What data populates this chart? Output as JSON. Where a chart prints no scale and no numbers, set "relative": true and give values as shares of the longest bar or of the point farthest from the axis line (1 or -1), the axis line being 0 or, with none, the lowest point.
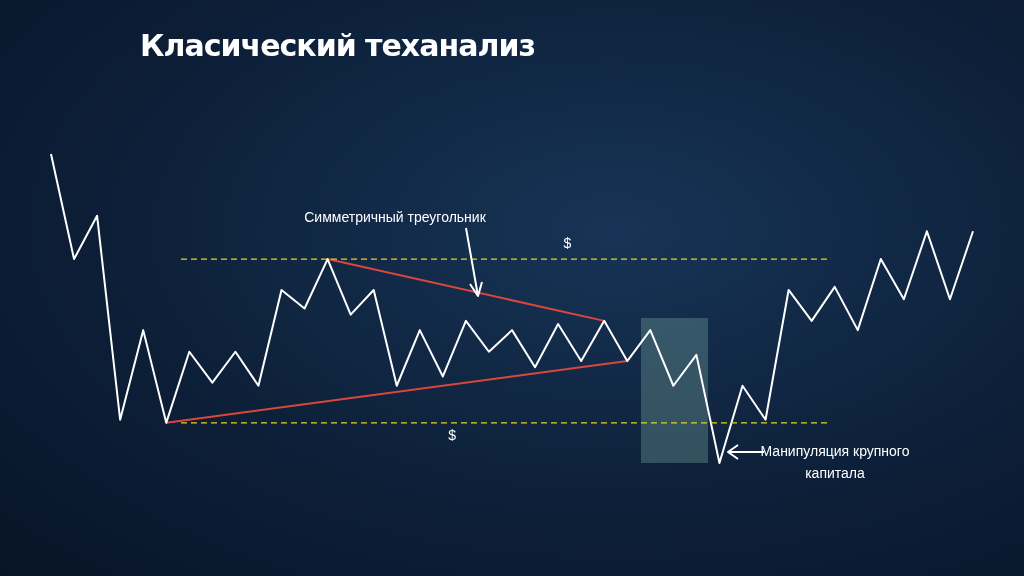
{
  "chart_data": {
    "type": "line",
    "title": "Класический теханализ",
    "relative": true,
    "marker": "none",
    "line_style": "solid",
    "categories": [
      null,
      null,
      null,
      null,
      null,
      null,
      null,
      null,
      null,
      null,
      null,
      null,
      null,
      null,
      null,
      null,
      null,
      null,
      null,
      null,
      null,
      null,
      null,
      null,
      null,
      null,
      null,
      null,
      null,
      null,
      null,
      null,
      null,
      null,
      null,
      null,
      null,
      null,
      null,
      null,
      null
    ],
    "series": [
      {
        "color": "#ffffff",
        "values": [
          1.0,
          0.66,
          0.8,
          0.14,
          0.43,
          0.13,
          0.36,
          0.26,
          0.36,
          0.25,
          0.56,
          0.5,
          0.66,
          0.48,
          0.56,
          0.25,
          0.43,
          0.28,
          0.46,
          0.36,
          0.43,
          0.31,
          0.45,
          0.33,
          0.46,
          0.33,
          0.43,
          0.25,
          0.35,
          0,
          0.25,
          0.14,
          0.56,
          0.46,
          0.57,
          0.43,
          0.66,
          0.53,
          0.75,
          0.53,
          0.75
        ]
      },
      {
        "color": "#d9463e",
        "values": [
          null,
          null,
          null,
          null,
          null,
          null,
          null,
          null,
          null,
          null,
          null,
          null,
          0.66,
          null,
          null,
          null,
          null,
          null,
          null,
          null,
          null,
          null,
          null,
          null,
          0.46,
          null,
          null,
          null,
          null,
          null,
          null,
          null,
          null,
          null,
          null,
          null,
          null,
          null,
          null,
          null,
          null
        ]
      },
      {
        "color": "#d9463e",
        "values": [
          null,
          null,
          null,
          null,
          null,
          0.13,
          null,
          null,
          null,
          null,
          null,
          null,
          null,
          null,
          null,
          null,
          null,
          null,
          null,
          null,
          null,
          null,
          null,
          null,
          null,
          0.33,
          null,
          null,
          null,
          null,
          null,
          null,
          null,
          null,
          null,
          null,
          null,
          null,
          null,
          null,
          null
        ]
      }
    ],
    "ref_lines": [
      {
        "axis": "y",
        "value": 0.66,
        "label": "$",
        "color": "#e8d21d",
        "line_style": "dashed"
      },
      {
        "axis": "y",
        "value": 0.13,
        "label": "$",
        "color": "#e8d21d",
        "line_style": "dashed"
      }
    ],
    "annotations": [
      "Симметричный треугольник",
      "Манипуляция крупного капитала"
    ]
  }
}
